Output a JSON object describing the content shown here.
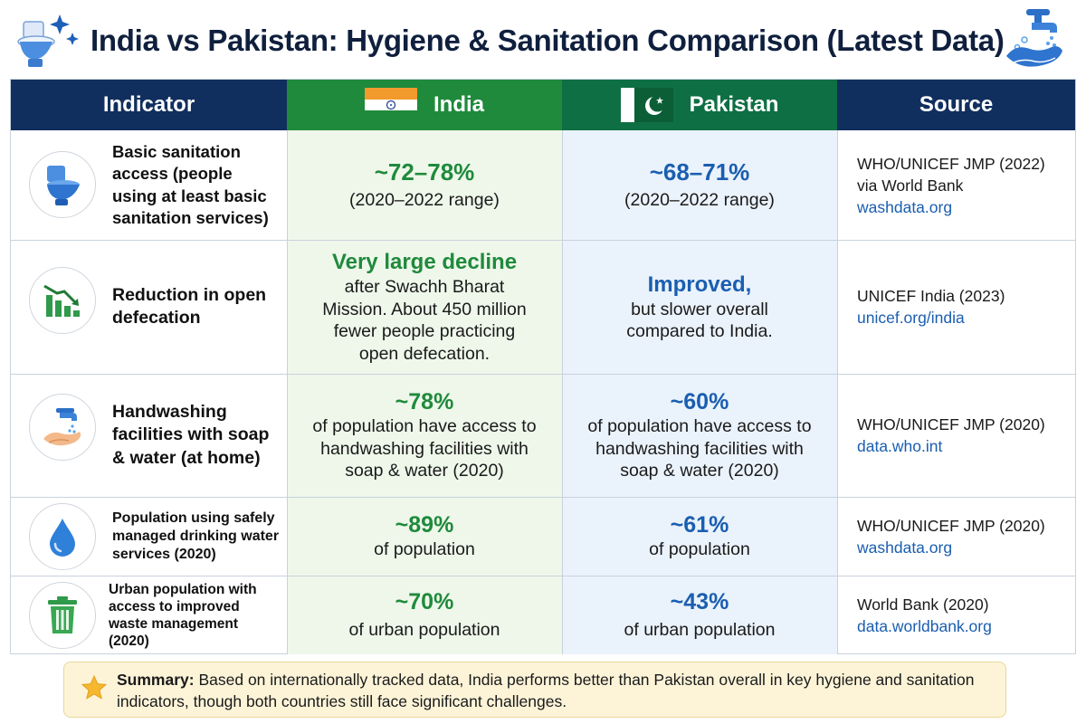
{
  "title": "India vs Pakistan: Hygiene & Sanitation Comparison (Latest Data)",
  "header_icons": {
    "left": "toilet-sparkle-icon",
    "right": "handwashing-tap-icon"
  },
  "columns": {
    "indicator": "Indicator",
    "india": "India",
    "pakistan": "Pakistan",
    "source": "Source"
  },
  "colors": {
    "navy": "#112f5e",
    "india_green": "#1f8a3c",
    "pakistan_green": "#0f6f44",
    "value_blue": "#1a5eb0"
  },
  "rows": [
    {
      "icon": "toilet-icon",
      "indicator": "Basic sanitation access (people using at least basic sanitation services)",
      "india": {
        "headline": "~72–78%",
        "detail": "(2020–2022 range)"
      },
      "pakistan": {
        "headline": "~68–71%",
        "detail": "(2020–2022 range)"
      },
      "source": {
        "line1": "WHO/UNICEF JMP (2022)",
        "line2": "via World Bank",
        "link": "washdata.org"
      }
    },
    {
      "icon": "declining-chart-icon",
      "indicator": "Reduction in open defecation",
      "india": {
        "headline": "Very large decline",
        "detail": "after Swachh Bharat Mission. About 450 million fewer people practicing open defecation."
      },
      "pakistan": {
        "headline": "Improved,",
        "detail": "but slower overall compared to India."
      },
      "source": {
        "line1": "UNICEF India (2023)",
        "link": "unicef.org/india"
      }
    },
    {
      "icon": "handwashing-icon",
      "indicator": "Handwashing facilities with soap & water (at home)",
      "india": {
        "headline": "~78%",
        "detail": "of population have access to handwashing facilities with soap & water (2020)"
      },
      "pakistan": {
        "headline": "~60%",
        "detail": "of population have access to handwashing facilities with soap & water (2020)"
      },
      "source": {
        "line1": "WHO/UNICEF JMP (2020)",
        "link": "data.who.int"
      }
    },
    {
      "icon": "water-drop-icon",
      "indicator": "Population using safely managed drinking water services (2020)",
      "india": {
        "headline": "~89%",
        "detail": "of population"
      },
      "pakistan": {
        "headline": "~61%",
        "detail": "of population"
      },
      "source": {
        "line1": "WHO/UNICEF JMP (2020)",
        "link": "washdata.org"
      }
    },
    {
      "icon": "trash-bin-icon",
      "indicator": "Urban population with access to improved waste management (2020)",
      "india": {
        "headline": "~70%",
        "detail": "of urban population"
      },
      "pakistan": {
        "headline": "~43%",
        "detail": "of urban population"
      },
      "source": {
        "line1": "World Bank (2020)",
        "link": "data.worldbank.org"
      }
    }
  ],
  "summary": {
    "label": "Summary:",
    "text": "Based on internationally tracked data, India performs better than Pakistan overall in key hygiene and sanitation indicators, though both countries still face significant challenges."
  }
}
